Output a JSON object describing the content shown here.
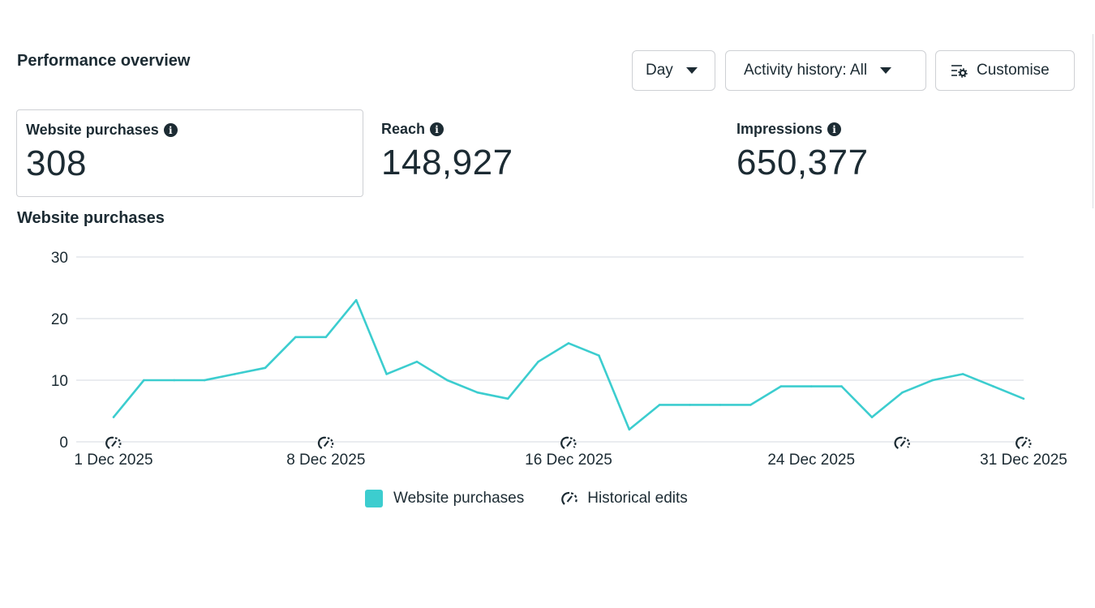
{
  "header": {
    "title": "Performance overview"
  },
  "toolbar": {
    "day_label": "Day",
    "activity_label": "Activity history: All",
    "customise_label": "Customise"
  },
  "metrics": [
    {
      "label": "Website purchases",
      "value": "308",
      "selected": true
    },
    {
      "label": "Reach",
      "value": "148,927",
      "selected": false
    },
    {
      "label": "Impressions",
      "value": "650,377",
      "selected": false
    }
  ],
  "chart_title": "Website purchases",
  "colors": {
    "series": "#3ccdcf",
    "grid": "#e4e6eb",
    "text": "#1c2b33"
  },
  "chart_data": {
    "type": "line",
    "title": "Website purchases",
    "xlabel": "",
    "ylabel": "",
    "ylim": [
      0,
      30
    ],
    "yticks": [
      "0",
      "10",
      "20",
      "30"
    ],
    "x": [
      "1 Dec 2025",
      "2 Dec 2025",
      "3 Dec 2025",
      "4 Dec 2025",
      "5 Dec 2025",
      "6 Dec 2025",
      "7 Dec 2025",
      "8 Dec 2025",
      "9 Dec 2025",
      "10 Dec 2025",
      "11 Dec 2025",
      "12 Dec 2025",
      "13 Dec 2025",
      "14 Dec 2025",
      "15 Dec 2025",
      "16 Dec 2025",
      "17 Dec 2025",
      "18 Dec 2025",
      "19 Dec 2025",
      "20 Dec 2025",
      "21 Dec 2025",
      "22 Dec 2025",
      "23 Dec 2025",
      "24 Dec 2025",
      "25 Dec 2025",
      "26 Dec 2025",
      "27 Dec 2025",
      "28 Dec 2025",
      "29 Dec 2025",
      "30 Dec 2025",
      "31 Dec 2025"
    ],
    "xtick_labels": [
      "1 Dec 2025",
      "8 Dec 2025",
      "16 Dec 2025",
      "24 Dec 2025",
      "31 Dec 2025"
    ],
    "series": [
      {
        "name": "Website purchases",
        "values": [
          4,
          10,
          10,
          10,
          11,
          12,
          17,
          17,
          23,
          11,
          13,
          10,
          8,
          7,
          13,
          16,
          14,
          2,
          6,
          6,
          6,
          6,
          9,
          9,
          9,
          4,
          8,
          10,
          11,
          9,
          7
        ]
      }
    ],
    "historical_edits": [
      "1 Dec 2025",
      "8 Dec 2025",
      "16 Dec 2025",
      "27 Dec 2025",
      "31 Dec 2025"
    ],
    "grid": true,
    "legend_position": "bottom-center"
  },
  "legend": {
    "series_label": "Website purchases",
    "edits_label": "Historical edits"
  }
}
